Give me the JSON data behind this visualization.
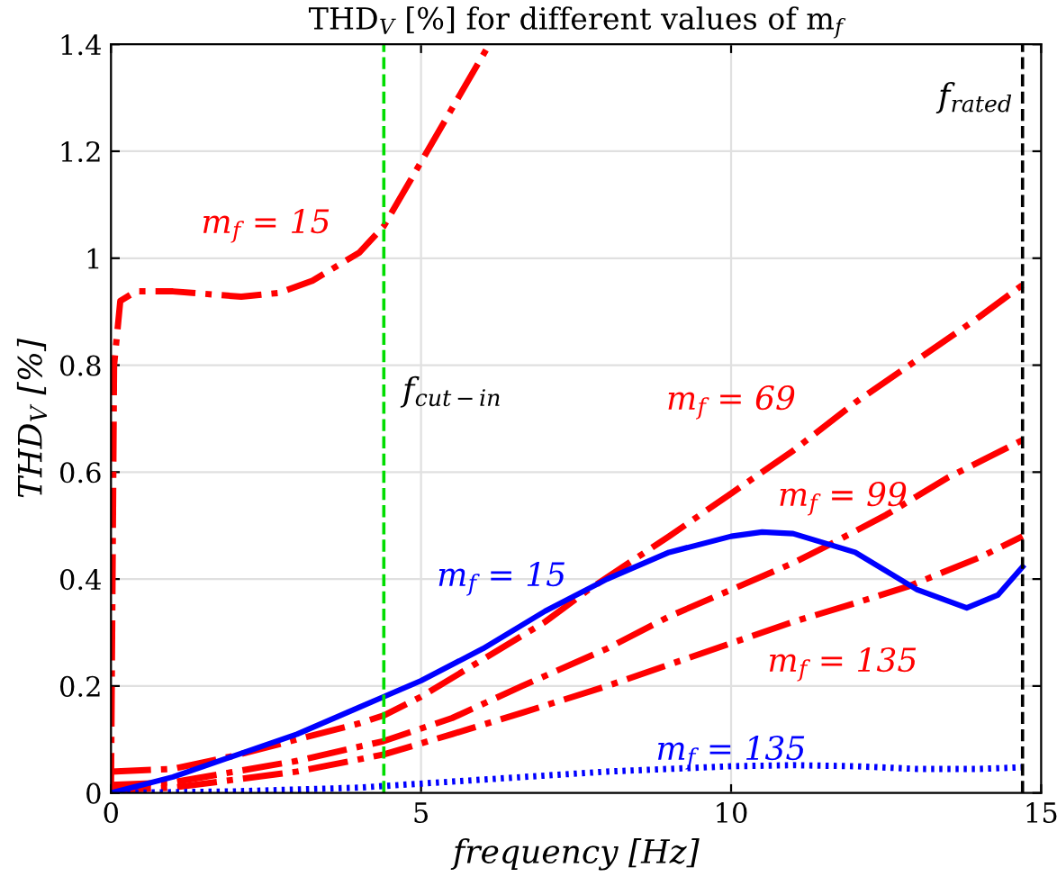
{
  "chart_data": {
    "type": "line",
    "title": "THD$_{V}$ [%] for different values of m$_{f}$",
    "xlabel": "frequency [Hz]",
    "ylabel": "THD$_{V}$ [%]",
    "xlim": [
      0,
      15
    ],
    "ylim": [
      0,
      1.4
    ],
    "xticks": [
      0,
      5,
      10,
      15
    ],
    "yticks": [
      0,
      0.2,
      0.4,
      0.6,
      0.8,
      1,
      1.2,
      1.4
    ],
    "grid": true,
    "marker": "none",
    "series": [
      {
        "name": "m$_{f}$ = 15",
        "color": "#ff0000",
        "line_style": "dashdot",
        "x": [
          0,
          0.05,
          0.15,
          0.4,
          1,
          2.1,
          2.7,
          3.25,
          4,
          4.4,
          5.1,
          5.6,
          6.1
        ],
        "values": [
          0,
          0.8,
          0.92,
          0.938,
          0.938,
          0.928,
          0.935,
          0.958,
          1.01,
          1.06,
          1.2,
          1.3,
          1.4
        ]
      },
      {
        "name": "m$_{f}$ = 69",
        "color": "#ff0000",
        "line_style": "dashdot",
        "x": [
          0,
          1,
          2,
          3,
          4,
          4.4,
          5,
          6,
          7,
          7.7,
          9,
          10,
          11,
          12,
          13,
          14,
          14.7
        ],
        "values": [
          0.04,
          0.045,
          0.07,
          0.1,
          0.13,
          0.145,
          0.18,
          0.25,
          0.32,
          0.38,
          0.48,
          0.56,
          0.64,
          0.73,
          0.81,
          0.89,
          0.95
        ]
      },
      {
        "name": "m$_{f}$ = 99",
        "color": "#ff0000",
        "line_style": "dashdot",
        "x": [
          0,
          1,
          2,
          3,
          4.4,
          5.5,
          6.63,
          8,
          9,
          10,
          11,
          11.6,
          12.5,
          13.5,
          14.7
        ],
        "values": [
          0.015,
          0.02,
          0.04,
          0.06,
          0.097,
          0.14,
          0.2,
          0.27,
          0.33,
          0.38,
          0.43,
          0.465,
          0.52,
          0.59,
          0.66
        ]
      },
      {
        "name": "m$_{f}$ = 135",
        "color": "#ff0000",
        "line_style": "dashdot",
        "x": [
          0,
          1,
          2,
          3,
          4.4,
          5.5,
          6.63,
          8,
          9,
          10,
          11,
          12,
          12.85,
          14,
          14.7
        ],
        "values": [
          0.005,
          0.01,
          0.025,
          0.04,
          0.072,
          0.11,
          0.15,
          0.2,
          0.24,
          0.28,
          0.32,
          0.355,
          0.386,
          0.44,
          0.48
        ]
      },
      {
        "name": "m$_{f}$ = 15",
        "color": "#0000ff",
        "line_style": "solid",
        "x": [
          0,
          1,
          2,
          3,
          4,
          4.4,
          5,
          6,
          7,
          8,
          9,
          10,
          10.5,
          11,
          12,
          13,
          13.8,
          14.3,
          14.7
        ],
        "values": [
          0,
          0.03,
          0.07,
          0.11,
          0.16,
          0.18,
          0.21,
          0.27,
          0.34,
          0.4,
          0.45,
          0.48,
          0.488,
          0.485,
          0.45,
          0.38,
          0.346,
          0.37,
          0.423
        ]
      },
      {
        "name": "m$_{f}$ = 135",
        "color": "#0000ff",
        "line_style": "dotted",
        "x": [
          0,
          2,
          4,
          6,
          8,
          10,
          11,
          12,
          13,
          14,
          14.7
        ],
        "values": [
          0,
          0.003,
          0.01,
          0.025,
          0.04,
          0.05,
          0.052,
          0.05,
          0.045,
          0.045,
          0.048
        ]
      }
    ],
    "ref_lines": [
      {
        "axis": "x",
        "value": 4.4,
        "label": "f$_{cut−in}$",
        "color": "#00dd00",
        "line_style": "dashed"
      },
      {
        "axis": "x",
        "value": 14.7,
        "label": "f$_{rated}$",
        "color": "#000000",
        "line_style": "dashed"
      }
    ]
  }
}
